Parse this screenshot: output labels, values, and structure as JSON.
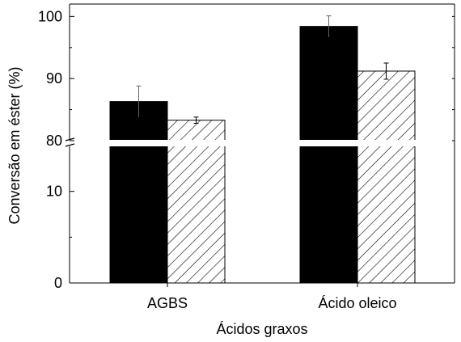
{
  "chart_data": {
    "type": "bar",
    "title": "",
    "xlabel": "Ácidos graxos",
    "ylabel": "Conversão em éster (%)",
    "categories": [
      "AGBS",
      "Ácido oleico"
    ],
    "series": [
      {
        "fill": "solid",
        "color": "#000000",
        "values": [
          86.3,
          98.4
        ],
        "errors": [
          2.5,
          1.7
        ]
      },
      {
        "fill": "hatched",
        "color": "#000000",
        "values": [
          83.3,
          91.2
        ],
        "errors": [
          0.5,
          1.3
        ]
      }
    ],
    "axis_break": {
      "lower_range": [
        0,
        15
      ],
      "upper_range": [
        80,
        102
      ]
    },
    "y_ticks": [
      {
        "value": 0,
        "label": "0"
      },
      {
        "value": 10,
        "label": "10"
      },
      {
        "value": 80,
        "label": "80"
      },
      {
        "value": 90,
        "label": "90"
      },
      {
        "value": 100,
        "label": "100"
      }
    ],
    "grid": false,
    "legend": "none"
  }
}
